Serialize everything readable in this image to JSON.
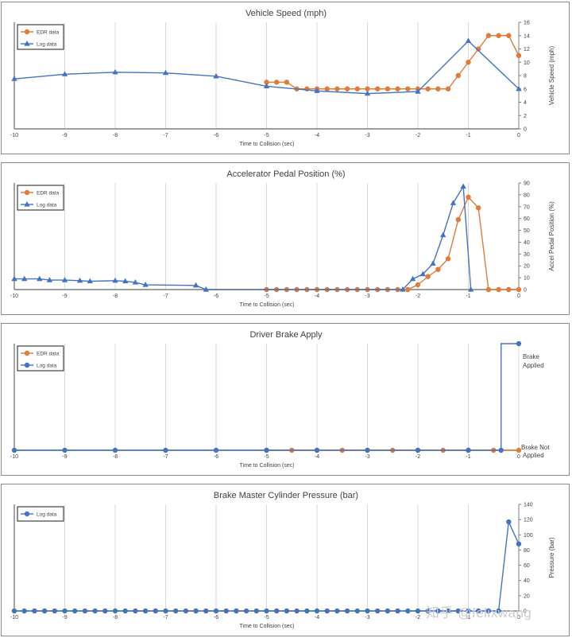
{
  "watermark": "知乎 @felixwang",
  "colors": {
    "edr": "#E07B39",
    "log": "#4472C4",
    "grid": "#d9d9d9",
    "axis": "#7f7f7f",
    "text": "#404040"
  },
  "chart_data": [
    {
      "type": "line",
      "title": "Vehicle Speed (mph)",
      "xlabel": "Time to Collision (sec)",
      "ylabel": "Vehicle Speed (mph)",
      "xlim": [
        -10,
        0
      ],
      "ylim": [
        0,
        16
      ],
      "x_ticks": [
        -10,
        -9,
        -8,
        -7,
        -6,
        -5,
        -4,
        -3,
        -2,
        -1,
        0
      ],
      "y_ticks": [
        0,
        2,
        4,
        6,
        8,
        10,
        12,
        14,
        16
      ],
      "legend_position": "top-left",
      "series": [
        {
          "name": "EDR data",
          "color": "#E07B39",
          "marker": "circle",
          "x": [
            -5.0,
            -4.8,
            -4.6,
            -4.4,
            -4.2,
            -4.0,
            -3.8,
            -3.6,
            -3.4,
            -3.2,
            -3.0,
            -2.8,
            -2.6,
            -2.4,
            -2.2,
            -2.0,
            -1.8,
            -1.6,
            -1.4,
            -1.2,
            -1.0,
            -0.8,
            -0.6,
            -0.4,
            -0.2,
            0.0
          ],
          "y": [
            7,
            7,
            7,
            6,
            6,
            6,
            6,
            6,
            6,
            6,
            6,
            6,
            6,
            6,
            6,
            6,
            6,
            6,
            6,
            8,
            10,
            12,
            14,
            14,
            14,
            11
          ]
        },
        {
          "name": "Log data",
          "color": "#4472C4",
          "marker": "triangle",
          "x": [
            -10,
            -9,
            -8,
            -7,
            -6,
            -5,
            -4,
            -3,
            -2,
            -1,
            0
          ],
          "y": [
            7.5,
            8.2,
            8.5,
            8.4,
            7.9,
            6.4,
            5.7,
            5.3,
            5.6,
            13.2,
            6.0
          ]
        }
      ]
    },
    {
      "type": "line",
      "title": "Accelerator Pedal Position (%)",
      "xlabel": "Time to Collision (sec)",
      "ylabel": "Accel Pedal Position (%)",
      "xlim": [
        -10,
        0
      ],
      "ylim": [
        0,
        90
      ],
      "x_ticks": [
        -10,
        -9,
        -8,
        -7,
        -6,
        -5,
        -4,
        -3,
        -2,
        -1,
        0
      ],
      "y_ticks": [
        0,
        10,
        20,
        30,
        40,
        50,
        60,
        70,
        80,
        90
      ],
      "legend_position": "top-left",
      "series": [
        {
          "name": "EDR data",
          "color": "#E07B39",
          "marker": "circle",
          "x": [
            -5.0,
            -4.8,
            -4.6,
            -4.4,
            -4.2,
            -4.0,
            -3.8,
            -3.6,
            -3.4,
            -3.2,
            -3.0,
            -2.8,
            -2.6,
            -2.4,
            -2.2,
            -2.0,
            -1.8,
            -1.6,
            -1.4,
            -1.2,
            -1.0,
            -0.8,
            -0.6,
            -0.4,
            -0.2,
            0.0
          ],
          "y": [
            0,
            0,
            0,
            0,
            0,
            0,
            0,
            0,
            0,
            0,
            0,
            0,
            0,
            0,
            0,
            4,
            11,
            17,
            26,
            59,
            78,
            69,
            0,
            0,
            0,
            0
          ]
        },
        {
          "name": "Log data",
          "color": "#4472C4",
          "marker": "triangle",
          "x": [
            -10.0,
            -9.8,
            -9.5,
            -9.3,
            -9.0,
            -8.7,
            -8.5,
            -8.0,
            -7.8,
            -7.6,
            -7.4,
            -6.4,
            -6.2,
            -2.3,
            -2.1,
            -1.9,
            -1.7,
            -1.5,
            -1.3,
            -1.1,
            -0.95
          ],
          "y": [
            9,
            9,
            9,
            8,
            8,
            7.5,
            7,
            7.5,
            7,
            6,
            4,
            3.5,
            0,
            0,
            9,
            13,
            22,
            46,
            73,
            87,
            0
          ]
        }
      ]
    },
    {
      "type": "line",
      "title": "Driver Brake Apply",
      "xlabel": "Time to Collision (sec)",
      "ylabel": "",
      "xlim": [
        -10,
        0
      ],
      "ylim": [
        0,
        1
      ],
      "x_ticks": [
        -10,
        -9,
        -8,
        -7,
        -6,
        -5,
        -4,
        -3,
        -2,
        -1,
        0
      ],
      "y_category_labels": {
        "top": [
          "Brake",
          "Applied"
        ],
        "bottom": [
          "Brake Not",
          "Applied"
        ]
      },
      "legend_position": "top-left",
      "series": [
        {
          "name": "EDR data",
          "color": "#E07B39",
          "marker": "circle",
          "x": [
            -5.0,
            -4.5,
            -4.0,
            -3.5,
            -3.0,
            -2.5,
            -2.0,
            -1.5,
            -1.0,
            -0.5,
            0.0
          ],
          "y": [
            0,
            0,
            0,
            0,
            0,
            0,
            0,
            0,
            0,
            0,
            0
          ]
        },
        {
          "name": "Log data",
          "color": "#4472C4",
          "marker": "circle",
          "x": [
            -10,
            -9,
            -8,
            -7,
            -6,
            -5,
            -4,
            -3,
            -2,
            -1,
            -0.35,
            -0.35,
            0.0
          ],
          "y": [
            0,
            0,
            0,
            0,
            0,
            0,
            0,
            0,
            0,
            0,
            0,
            1,
            1
          ],
          "markers": [
            true,
            true,
            true,
            true,
            true,
            true,
            true,
            true,
            true,
            true,
            true,
            false,
            true
          ]
        }
      ]
    },
    {
      "type": "line",
      "title": "Brake Master Cylinder Pressure (bar)",
      "xlabel": "Time to Collision (sec)",
      "ylabel": "Pressure (bar)",
      "xlim": [
        -10,
        0
      ],
      "ylim": [
        0,
        140
      ],
      "x_ticks": [
        -10,
        -9,
        -8,
        -7,
        -6,
        -5,
        -4,
        -3,
        -2,
        -1,
        0
      ],
      "y_ticks": [
        0,
        20,
        40,
        60,
        80,
        100,
        120,
        140
      ],
      "legend_position": "top-left",
      "series": [
        {
          "name": "Log data",
          "color": "#4472C4",
          "marker": "circle",
          "x": [
            -10.0,
            -9.8,
            -9.6,
            -9.4,
            -9.2,
            -9.0,
            -8.8,
            -8.6,
            -8.4,
            -8.2,
            -8.0,
            -7.8,
            -7.6,
            -7.4,
            -7.2,
            -7.0,
            -6.8,
            -6.6,
            -6.4,
            -6.2,
            -6.0,
            -5.8,
            -5.6,
            -5.4,
            -5.2,
            -5.0,
            -4.8,
            -4.6,
            -4.4,
            -4.2,
            -4.0,
            -3.8,
            -3.6,
            -3.4,
            -3.2,
            -3.0,
            -2.8,
            -2.6,
            -2.4,
            -2.2,
            -2.0,
            -1.8,
            -1.6,
            -1.4,
            -1.2,
            -1.0,
            -0.8,
            -0.6,
            -0.4,
            -0.2,
            0.0
          ],
          "y": [
            0,
            0,
            0,
            0,
            0,
            0,
            0,
            0,
            0,
            0,
            0,
            0,
            0,
            0,
            0,
            0,
            0,
            0,
            0,
            0,
            0,
            0,
            0,
            0,
            0,
            0,
            0,
            0,
            0,
            0,
            0,
            0,
            0,
            0,
            0,
            0,
            0,
            0,
            0,
            0,
            0,
            0,
            0,
            0,
            0,
            0,
            0,
            0,
            0,
            117,
            88
          ]
        }
      ]
    }
  ]
}
